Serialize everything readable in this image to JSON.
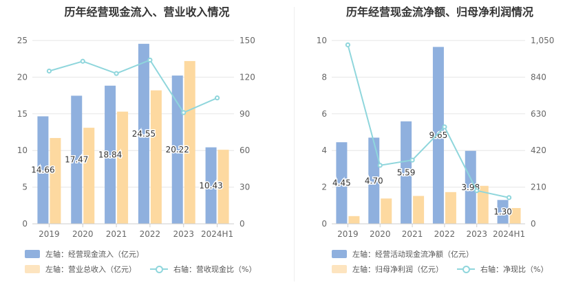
{
  "colors": {
    "bar1": "#8fb0de",
    "bar2": "#fdd9a0",
    "line": "#8fd6dc",
    "grid": "#e6e6e6",
    "axis_text": "#666666"
  },
  "chart_data": [
    {
      "type": "bar",
      "title": "历年经营现金流入、营业收入情况",
      "categories": [
        "2019",
        "2020",
        "2021",
        "2022",
        "2023",
        "2024H1"
      ],
      "left_axis": {
        "min": 0,
        "max": 25,
        "ticks": [
          "0",
          "5",
          "10",
          "15",
          "20",
          "25"
        ]
      },
      "right_axis": {
        "min": 0,
        "max": 150,
        "ticks": [
          "0",
          "30",
          "60",
          "90",
          "120",
          "150"
        ]
      },
      "series": [
        {
          "name": "左轴：经营现金流入（亿元）",
          "kind": "bar",
          "axis": "left",
          "values": [
            14.66,
            17.47,
            18.84,
            24.55,
            20.22,
            10.43
          ],
          "labels": [
            "14.66",
            "17.47",
            "18.84",
            "24.55",
            "20.22",
            "10.43"
          ]
        },
        {
          "name": "左轴：营业总收入（亿元）",
          "kind": "bar",
          "axis": "left",
          "values": [
            11.7,
            13.1,
            15.3,
            18.2,
            22.2,
            10.1
          ]
        },
        {
          "name": "右轴：营收现金比（%）",
          "kind": "line",
          "axis": "right",
          "values": [
            125,
            133,
            123,
            134,
            91,
            103
          ]
        }
      ]
    },
    {
      "type": "bar",
      "title": "历年经营现金流净额、归母净利润情况",
      "categories": [
        "2019",
        "2020",
        "2021",
        "2022",
        "2023",
        "2024H1"
      ],
      "left_axis": {
        "min": 0,
        "max": 10,
        "ticks": [
          "0",
          "2",
          "4",
          "6",
          "8",
          "10"
        ]
      },
      "right_axis": {
        "min": 0,
        "max": 1050,
        "ticks": [
          "0",
          "210",
          "420",
          "630",
          "840",
          "1,050"
        ]
      },
      "series": [
        {
          "name": "左轴：经营活动现金流净额（亿元）",
          "kind": "bar",
          "axis": "left",
          "values": [
            4.45,
            4.7,
            5.59,
            9.65,
            3.98,
            1.3
          ],
          "labels": [
            "4.45",
            "4.70",
            "5.59",
            "9.65",
            "3.98",
            "1.30"
          ]
        },
        {
          "name": "左轴：归母净利润（亿元）",
          "kind": "bar",
          "axis": "left",
          "values": [
            0.42,
            1.38,
            1.52,
            1.73,
            2.07,
            0.86
          ]
        },
        {
          "name": "右轴：净现比（%）",
          "kind": "line",
          "axis": "right",
          "values": [
            1025,
            335,
            365,
            555,
            190,
            150
          ]
        }
      ]
    }
  ]
}
